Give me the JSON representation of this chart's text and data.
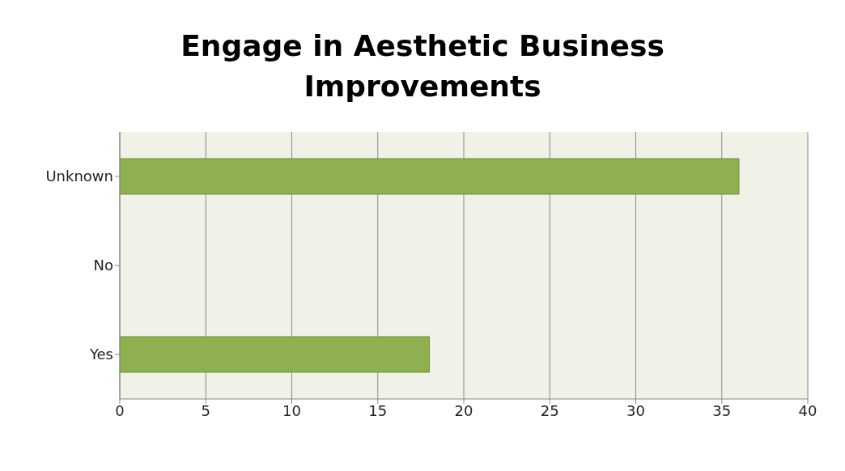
{
  "chart_data": {
    "type": "bar",
    "orientation": "horizontal",
    "title": "Engage in Aesthetic Business Improvements",
    "categories": [
      "Unknown",
      "No",
      "Yes"
    ],
    "values": [
      36,
      0,
      18
    ],
    "color": "#8fb04f",
    "xlim": [
      0,
      40
    ],
    "xticks": [
      0,
      5,
      10,
      15,
      20,
      25,
      30,
      35,
      40
    ],
    "grid": "x"
  }
}
